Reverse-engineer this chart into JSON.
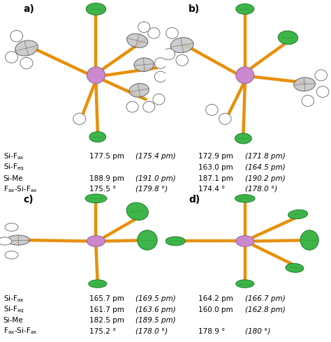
{
  "bg_color": "#ffffff",
  "bond_color": "#E8900A",
  "green_color": "#3DB549",
  "gray_color": "#B0B0B0",
  "purple_color": "#CC88CC",
  "labels_left": [
    "Si-F$_{ax}$",
    "Si-F$_{eq}$",
    "Si-Me",
    "F$_{ax}$-Si-F$_{ax}$"
  ],
  "values_a": [
    "177.5 pm",
    "(175.4 pm)",
    "",
    "",
    "188.9 pm",
    "(191.0 pm)",
    "175.5 °",
    "(179.8 °)"
  ],
  "values_b": [
    "172.9 pm",
    "(171.8 pm)",
    "163.0 pm",
    "(164.5 pm)",
    "187.1 pm",
    "(190.2 pm)",
    "174.4 °",
    "(178.0 °)"
  ],
  "values_c": [
    "165.7 pm",
    "(169.5 pm)",
    "161.7 pm",
    "(163.6 pm)",
    "182.5 pm",
    "(189.5 pm)",
    "175.2 °",
    "(178.0 °)"
  ],
  "values_d": [
    "164.2 pm",
    "(166.7 pm)",
    "160.0 pm",
    "(162.8 pm)",
    "",
    "",
    "178.9 °",
    "(180 °)"
  ]
}
